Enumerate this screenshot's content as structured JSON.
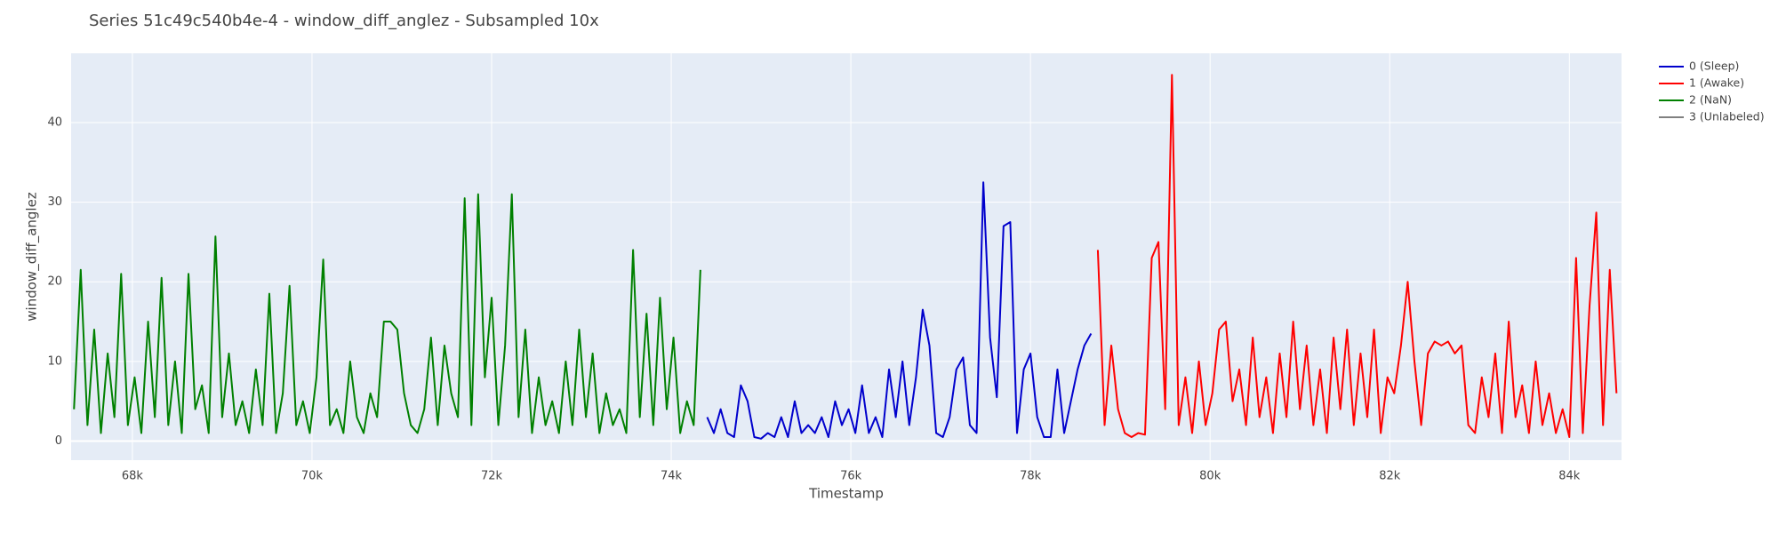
{
  "chart_data": {
    "type": "line",
    "title": "Series 51c49c540b4e-4 - window_diff_anglez - Subsampled 10x",
    "x_label": "Timestamp",
    "y_label": "window_diff_anglez",
    "xlim": [
      67318,
      84581
    ],
    "ylim": [
      -2.4,
      48.7
    ],
    "xticks": [
      {
        "value": 68000,
        "label": "68k"
      },
      {
        "value": 70000,
        "label": "70k"
      },
      {
        "value": 72000,
        "label": "72k"
      },
      {
        "value": 74000,
        "label": "74k"
      },
      {
        "value": 76000,
        "label": "76k"
      },
      {
        "value": 78000,
        "label": "78k"
      },
      {
        "value": 80000,
        "label": "80k"
      },
      {
        "value": 82000,
        "label": "82k"
      },
      {
        "value": 84000,
        "label": "84k"
      }
    ],
    "yticks": [
      0,
      10,
      20,
      30,
      40
    ],
    "grid": true,
    "legend": "outside-right",
    "series": [
      {
        "name": "0 (Sleep)",
        "color": "#0000cc",
        "x": [
          74400,
          74475,
          74550,
          74625,
          74700,
          74775,
          74850,
          74925,
          75000,
          75075,
          75150,
          75225,
          75300,
          75375,
          75450,
          75525,
          75600,
          75675,
          75750,
          75825,
          75900,
          75975,
          76050,
          76125,
          76200,
          76275,
          76350,
          76425,
          76500,
          76575,
          76650,
          76725,
          76800,
          76875,
          76950,
          77025,
          77100,
          77175,
          77250,
          77325,
          77400,
          77475,
          77550,
          77625,
          77700,
          77775,
          77850,
          77925,
          78000,
          78075,
          78150,
          78225,
          78300,
          78375,
          78450,
          78525,
          78600,
          78675
        ],
        "values": [
          3,
          1,
          4,
          1,
          0.5,
          7,
          5,
          0.5,
          0.3,
          1,
          0.5,
          3,
          0.5,
          5,
          1,
          2,
          1,
          3,
          0.5,
          5,
          2,
          4,
          1,
          7,
          1,
          3,
          0.5,
          9,
          3,
          10,
          2,
          8,
          16.5,
          12,
          1,
          0.5,
          3,
          9,
          10.5,
          2,
          1,
          32.5,
          13,
          5.5,
          27,
          27.5,
          1,
          9,
          11,
          3,
          0.5,
          0.5,
          9,
          1,
          5,
          9,
          12,
          13.5
        ]
      },
      {
        "name": "1 (Awake)",
        "color": "#ff0000",
        "x": [
          78750,
          78825,
          78900,
          78975,
          79050,
          79125,
          79200,
          79275,
          79350,
          79425,
          79500,
          79575,
          79650,
          79725,
          79800,
          79875,
          79950,
          80025,
          80100,
          80175,
          80250,
          80325,
          80400,
          80475,
          80550,
          80625,
          80700,
          80775,
          80850,
          80925,
          81000,
          81075,
          81150,
          81225,
          81300,
          81375,
          81450,
          81525,
          81600,
          81675,
          81750,
          81825,
          81900,
          81975,
          82050,
          82125,
          82200,
          82275,
          82350,
          82425,
          82500,
          82575,
          82650,
          82725,
          82800,
          82875,
          82950,
          83025,
          83100,
          83175,
          83250,
          83325,
          83400,
          83475,
          83550,
          83625,
          83700,
          83775,
          83850,
          83925,
          84000,
          84075,
          84150,
          84225,
          84300,
          84375,
          84450,
          84525
        ],
        "values": [
          24,
          2,
          12,
          4,
          1,
          0.5,
          1,
          0.8,
          23,
          25,
          4,
          46,
          2,
          8,
          1,
          10,
          2,
          6,
          14,
          15,
          5,
          9,
          2,
          13,
          3,
          8,
          1,
          11,
          3,
          15,
          4,
          12,
          2,
          9,
          1,
          13,
          4,
          14,
          2,
          11,
          3,
          14,
          1,
          8,
          6,
          12,
          20,
          10,
          2,
          11,
          12.5,
          12,
          12.5,
          11,
          12,
          2,
          1,
          8,
          3,
          11,
          1,
          15,
          3,
          7,
          1,
          10,
          2,
          6,
          1,
          4,
          0.5,
          23,
          1,
          17,
          28.7,
          2,
          21.5,
          6
        ]
      },
      {
        "name": "2 (NaN)",
        "color": "#008000",
        "x": [
          67350,
          67425,
          67500,
          67575,
          67650,
          67725,
          67800,
          67875,
          67950,
          68025,
          68100,
          68175,
          68250,
          68325,
          68400,
          68475,
          68550,
          68625,
          68700,
          68775,
          68850,
          68925,
          69000,
          69075,
          69150,
          69225,
          69300,
          69375,
          69450,
          69525,
          69600,
          69675,
          69750,
          69825,
          69900,
          69975,
          70050,
          70125,
          70200,
          70275,
          70350,
          70425,
          70500,
          70575,
          70650,
          70725,
          70800,
          70875,
          70950,
          71025,
          71100,
          71175,
          71250,
          71325,
          71400,
          71475,
          71550,
          71625,
          71700,
          71775,
          71850,
          71925,
          72000,
          72075,
          72150,
          72225,
          72300,
          72375,
          72450,
          72525,
          72600,
          72675,
          72750,
          72825,
          72900,
          72975,
          73050,
          73125,
          73200,
          73275,
          73350,
          73425,
          73500,
          73575,
          73650,
          73725,
          73800,
          73875,
          73950,
          74025,
          74100,
          74175,
          74250,
          74325
        ],
        "values": [
          4,
          21.5,
          2,
          14,
          1,
          11,
          3,
          21,
          2,
          8,
          1,
          15,
          3,
          20.5,
          2,
          10,
          1,
          21,
          4,
          7,
          1,
          25.7,
          3,
          11,
          2,
          5,
          1,
          9,
          2,
          18.5,
          1,
          6,
          19.5,
          2,
          5,
          1,
          8,
          22.8,
          2,
          4,
          1,
          10,
          3,
          1,
          6,
          3,
          15,
          15,
          14,
          6,
          2,
          1,
          4,
          13,
          2,
          12,
          6,
          3,
          30.5,
          2,
          31,
          8,
          18,
          2,
          12,
          31,
          3,
          14,
          1,
          8,
          2,
          5,
          1,
          10,
          2,
          14,
          3,
          11,
          1,
          6,
          2,
          4,
          1,
          24,
          3,
          16,
          2,
          18,
          4,
          13,
          1,
          5,
          2,
          21.5
        ]
      },
      {
        "name": "3 (Unlabeled)",
        "color": "#808080",
        "x": [],
        "values": []
      }
    ]
  }
}
